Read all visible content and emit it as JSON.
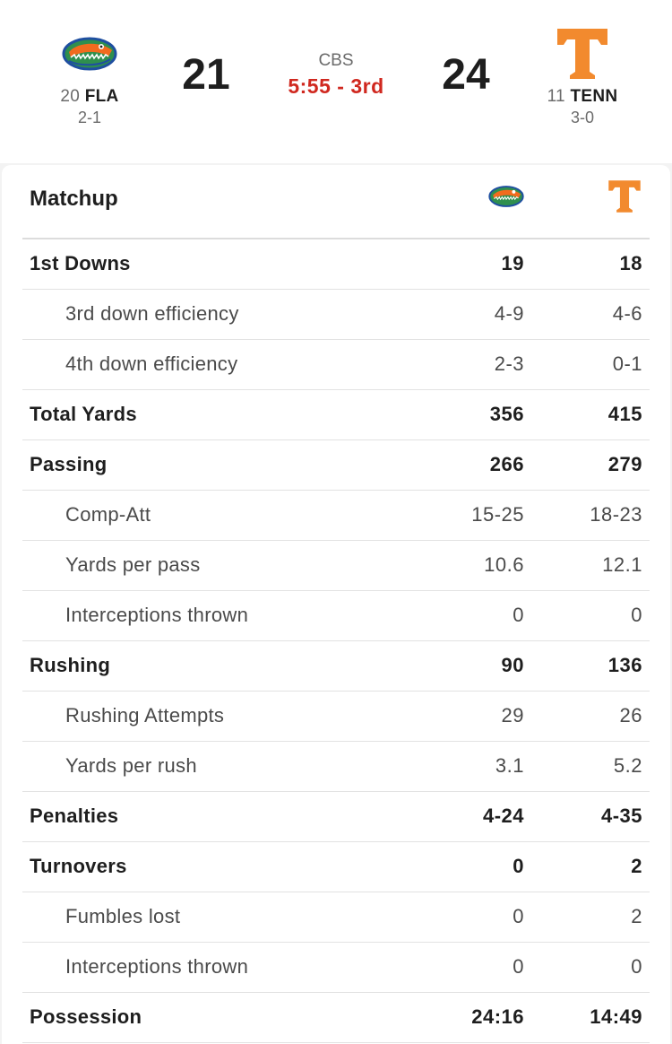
{
  "header": {
    "away": {
      "rank": "20",
      "abbr": "FLA",
      "record": "2-1",
      "score": "21",
      "logo": "gator-logo-icon"
    },
    "home": {
      "rank": "11",
      "abbr": "TENN",
      "record": "3-0",
      "score": "24",
      "logo": "power-t-logo-icon"
    },
    "network": "CBS",
    "clock": "5:55 - 3rd",
    "colors": {
      "clock": "#d0281f",
      "tenn_orange": "#f28a2e",
      "gator_blue": "#1f4fa0",
      "gator_green": "#2f8f4e",
      "gator_orange": "#f26b1e"
    }
  },
  "matchup": {
    "title": "Matchup",
    "rows": [
      {
        "label": "1st Downs",
        "away": "19",
        "home": "18",
        "type": "main"
      },
      {
        "label": "3rd down efficiency",
        "away": "4-9",
        "home": "4-6",
        "type": "sub"
      },
      {
        "label": "4th down efficiency",
        "away": "2-3",
        "home": "0-1",
        "type": "sub"
      },
      {
        "label": "Total Yards",
        "away": "356",
        "home": "415",
        "type": "main"
      },
      {
        "label": "Passing",
        "away": "266",
        "home": "279",
        "type": "main"
      },
      {
        "label": "Comp-Att",
        "away": "15-25",
        "home": "18-23",
        "type": "sub"
      },
      {
        "label": "Yards per pass",
        "away": "10.6",
        "home": "12.1",
        "type": "sub"
      },
      {
        "label": "Interceptions thrown",
        "away": "0",
        "home": "0",
        "type": "sub"
      },
      {
        "label": "Rushing",
        "away": "90",
        "home": "136",
        "type": "main"
      },
      {
        "label": "Rushing Attempts",
        "away": "29",
        "home": "26",
        "type": "sub"
      },
      {
        "label": "Yards per rush",
        "away": "3.1",
        "home": "5.2",
        "type": "sub"
      },
      {
        "label": "Penalties",
        "away": "4-24",
        "home": "4-35",
        "type": "main"
      },
      {
        "label": "Turnovers",
        "away": "0",
        "home": "2",
        "type": "main"
      },
      {
        "label": "Fumbles lost",
        "away": "0",
        "home": "2",
        "type": "sub"
      },
      {
        "label": "Interceptions thrown",
        "away": "0",
        "home": "0",
        "type": "sub"
      },
      {
        "label": "Possession",
        "away": "24:16",
        "home": "14:49",
        "type": "main"
      }
    ]
  }
}
